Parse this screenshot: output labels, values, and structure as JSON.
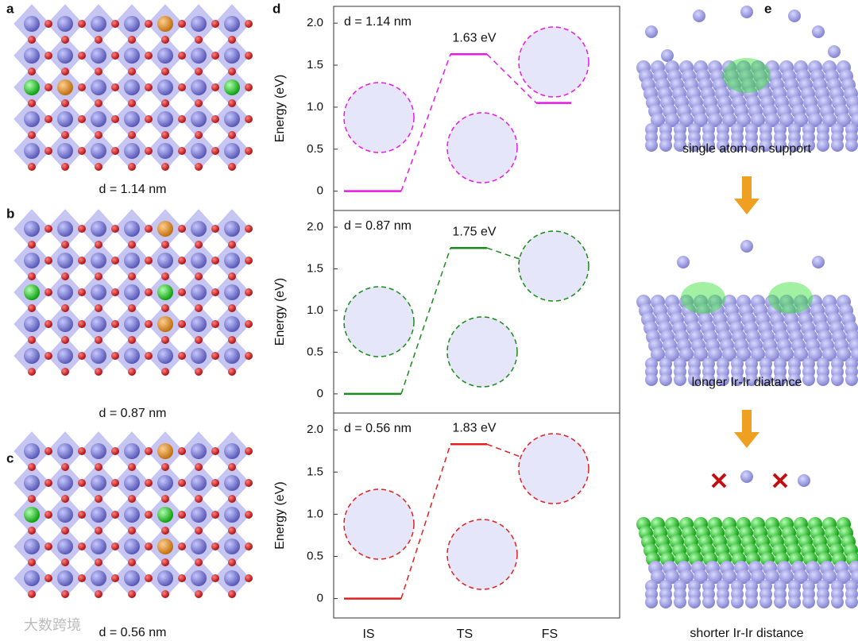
{
  "panel_labels": [
    "a",
    "b",
    "c",
    "d",
    "e"
  ],
  "structure_captions": [
    "d = 1.14 nm",
    "d = 0.87 nm",
    "d = 0.56 nm"
  ],
  "scheme_captions": [
    "single atom on support",
    "longer Ir-Ir diatance",
    "shorter Ir-Ir distance"
  ],
  "watermark": "大数跨境",
  "chart_data": [
    {
      "type": "line",
      "annotation": "d = 1.14 nm",
      "y_label": "Energy (eV)",
      "color": "#e619e6",
      "values": [
        0,
        1.63,
        1.05
      ],
      "value_labels": [
        null,
        "1.63 eV",
        null
      ],
      "ylim": [
        -0.23,
        2.2
      ],
      "yticks": [
        0,
        0.5,
        {
          "value": 1,
          "label": "1.0"
        },
        1.5,
        {
          "value": 2,
          "label": "2.0"
        }
      ]
    },
    {
      "type": "line",
      "annotation": "d = 0.87 nm",
      "y_label": "Energy (eV)",
      "color": "#1a8a1a",
      "values": [
        0,
        1.75,
        1.55
      ],
      "value_labels": [
        null,
        "1.75 eV",
        null
      ],
      "ylim": [
        -0.23,
        2.2
      ],
      "yticks": [
        0,
        0.5,
        {
          "value": 1,
          "label": "1.0"
        },
        1.5,
        {
          "value": 2,
          "label": "2.0"
        }
      ]
    },
    {
      "type": "line",
      "annotation": "d = 0.56 nm",
      "y_label": "Energy (eV)",
      "color": "#e02020",
      "categories": [
        "IS",
        "TS",
        "FS"
      ],
      "values": [
        0,
        1.83,
        1.61
      ],
      "value_labels": [
        null,
        "1.83 eV",
        null
      ],
      "ylim": [
        -0.23,
        2.2
      ],
      "yticks": [
        0,
        0.5,
        {
          "value": 1,
          "label": "1.0"
        },
        1.5,
        {
          "value": 2,
          "label": "2.0"
        }
      ]
    }
  ]
}
